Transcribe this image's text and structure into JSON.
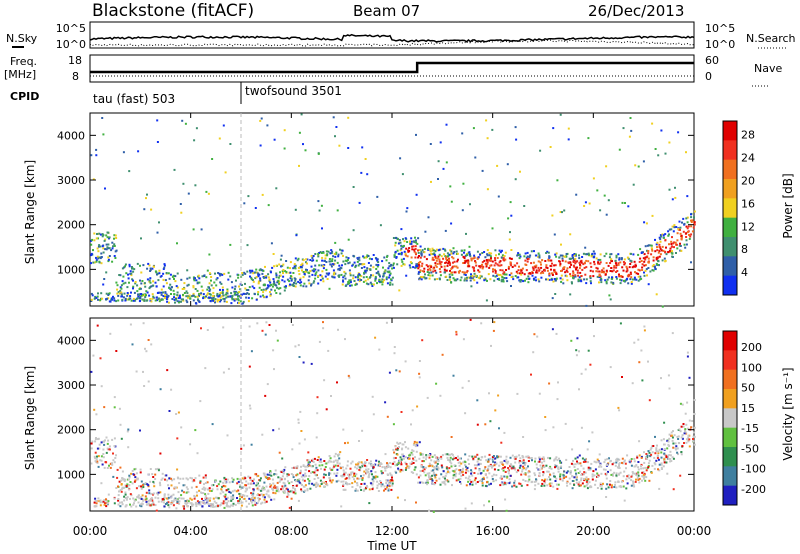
{
  "header": {
    "station": "Blackstone (fitACF)",
    "beam": "Beam 07",
    "date": "26/Dec/2013"
  },
  "side_labels": {
    "nsky": "N.Sky",
    "freq": "Freq.",
    "freq_unit": "[MHz]",
    "cpid": "CPID",
    "nsearch": "N.Search",
    "nave": "Nave"
  },
  "noise_axis_ticks": [
    "10^5",
    "10^0"
  ],
  "freq_axis_ticks": [
    "18",
    "8"
  ],
  "nave_axis_ticks": [
    "60",
    "0"
  ],
  "cpid_segments": [
    {
      "label": "tau (fast) 503",
      "start_hour": 0,
      "end_hour": 6
    },
    {
      "label": "twofsound 3501",
      "start_hour": 6,
      "end_hour": 24
    }
  ],
  "chart_data": [
    {
      "type": "heatmap",
      "title": "Power",
      "ylabel": "Slant Range [km]",
      "xlabel": "",
      "x_ticks": [
        "00:00",
        "04:00",
        "08:00",
        "12:00",
        "16:00",
        "20:00",
        "00:00"
      ],
      "y_ticks": [
        "1000",
        "2000",
        "3000",
        "4000"
      ],
      "xlim_hours": [
        0,
        24
      ],
      "ylim_km": [
        180,
        4500
      ],
      "colorbar_label": "Power [dB]",
      "colorbar_ticks": [
        "4",
        "8",
        "12",
        "16",
        "20",
        "24",
        "28"
      ],
      "colorbar_range": [
        0,
        30
      ],
      "colors": [
        "#1030f0",
        "#2f5fa8",
        "#3f8f6f",
        "#40b040",
        "#f0d020",
        "#f0a020",
        "#f07020",
        "#f03020",
        "#e00000"
      ]
    },
    {
      "type": "heatmap",
      "title": "Velocity",
      "ylabel": "Slant Range [km]",
      "xlabel": "Time UT",
      "x_ticks": [
        "00:00",
        "04:00",
        "08:00",
        "12:00",
        "16:00",
        "20:00",
        "00:00"
      ],
      "y_ticks": [
        "1000",
        "2000",
        "3000",
        "4000"
      ],
      "xlim_hours": [
        0,
        24
      ],
      "ylim_km": [
        180,
        4500
      ],
      "colorbar_label": "Velocity [m s⁻¹]",
      "colorbar_ticks": [
        "200",
        "100",
        "50",
        "15",
        "-15",
        "-50",
        "-100",
        "-200"
      ],
      "colorbar_range": [
        -250,
        250
      ],
      "colors": [
        "#2020c0",
        "#3f7f9f",
        "#2f8f4f",
        "#60c040",
        "#c8c8c8",
        "#f0a020",
        "#f07020",
        "#f03020",
        "#e00000"
      ]
    }
  ]
}
